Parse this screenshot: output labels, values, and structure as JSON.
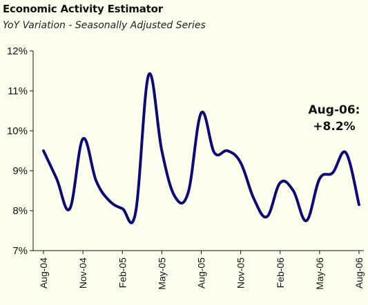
{
  "title": "Economic Activity Estimator",
  "subtitle": "YoY Variation - Seasonally Adjusted Series",
  "colors": {
    "background": "#fdfdee",
    "line": "#0a0a78",
    "axis": "#111111"
  },
  "chart_data": {
    "type": "line",
    "title": "Economic Activity Estimator",
    "subtitle": "YoY Variation - Seasonally Adjusted Series",
    "xlabel": "",
    "ylabel": "",
    "ylim": [
      7,
      12
    ],
    "y_ticks": [
      "7%",
      "8%",
      "9%",
      "10%",
      "11%",
      "12%"
    ],
    "x_ticks": [
      "Aug-04",
      "Nov-04",
      "Feb-05",
      "May-05",
      "Aug-05",
      "Nov-05",
      "Feb-06",
      "May-06",
      "Aug-06"
    ],
    "grid": false,
    "series": [
      {
        "x": [
          "Aug-04",
          "Sep-04",
          "Oct-04",
          "Nov-04",
          "Dec-04",
          "Jan-05",
          "Feb-05",
          "Mar-05",
          "Apr-05",
          "May-05",
          "Jun-05",
          "Jul-05",
          "Aug-05",
          "Sep-05",
          "Oct-05",
          "Nov-05",
          "Dec-05",
          "Jan-06",
          "Feb-06",
          "Mar-06",
          "Apr-06",
          "May-06",
          "Jun-06",
          "Jul-06",
          "Aug-06"
        ],
        "values": [
          9.5,
          8.8,
          8.05,
          9.8,
          8.75,
          8.25,
          8.05,
          7.95,
          11.4,
          9.5,
          8.35,
          8.45,
          10.45,
          9.45,
          9.5,
          9.2,
          8.3,
          7.85,
          8.7,
          8.5,
          7.75,
          8.8,
          8.95,
          9.45,
          8.15
        ]
      }
    ],
    "annotation": {
      "line1": "Aug-06:",
      "line2": "+8.2%"
    }
  }
}
